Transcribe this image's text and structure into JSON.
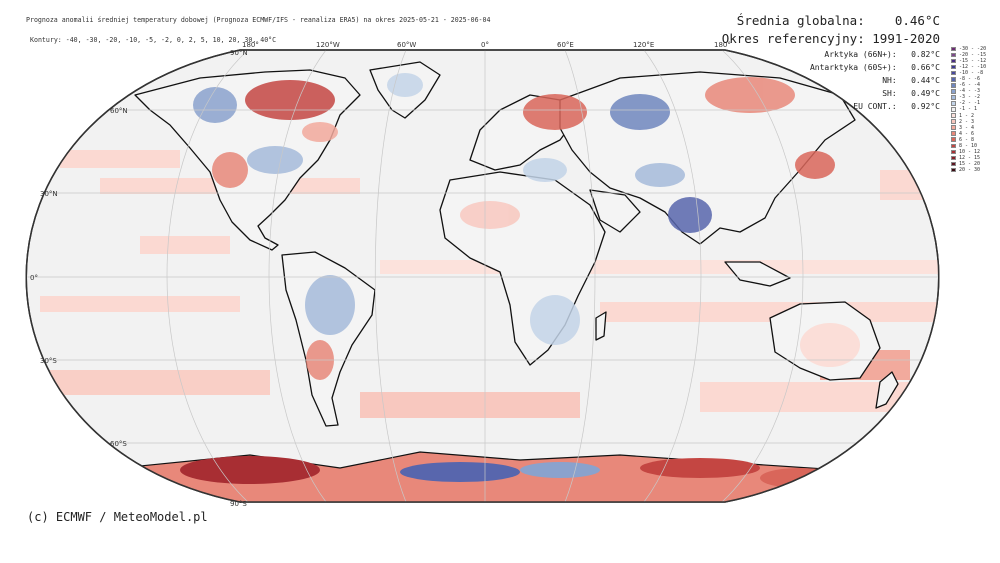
{
  "header": {
    "title": "Prognoza anomalii średniej temperatury dobowej (Prognoza ECMWF/IFS - reanaliza ERA5) na okres 2025-05-21 - 2025-06-04",
    "contours": "Kontury: -40, -30, -20, -10, -5, -2, 0, 2, 5, 10, 20, 30, 40°C"
  },
  "stats": {
    "global_label": "Średnia globalna:",
    "global_value": "0.46°C",
    "reference_label": "Okres referencyjny:",
    "reference_value": "1991-2020",
    "rows": [
      {
        "label": "Arktyka (66N+):",
        "value": "0.82°C"
      },
      {
        "label": "Antarktyka (60S+):",
        "value": "0.66°C"
      },
      {
        "label": "NH:",
        "value": "0.44°C"
      },
      {
        "label": "SH:",
        "value": "0.49°C"
      },
      {
        "label": "EU CONT.:",
        "value": "0.92°C"
      }
    ]
  },
  "legend": [
    {
      "label": "-30 - -20",
      "color": "#6d2a74"
    },
    {
      "label": "-20 - -15",
      "color": "#7e4a8c"
    },
    {
      "label": "-15 - -12",
      "color": "#4b2e83"
    },
    {
      "label": "-12 - -10",
      "color": "#3e3a94"
    },
    {
      "label": "-10 - -8",
      "color": "#48489e"
    },
    {
      "label": "-8 - -6",
      "color": "#5866ad"
    },
    {
      "label": "-6 - -4",
      "color": "#6f86be"
    },
    {
      "label": "-4 - -3",
      "color": "#8aa2cd"
    },
    {
      "label": "-3 - -2",
      "color": "#a6bbdb"
    },
    {
      "label": "-2 - -1",
      "color": "#c3d4e8"
    },
    {
      "label": "-1 - 1",
      "color": "#f1f1f1"
    },
    {
      "label": "1 - 2",
      "color": "#fbe1dc"
    },
    {
      "label": "2 - 3",
      "color": "#f8c8bf"
    },
    {
      "label": "3 - 4",
      "color": "#f2aa9d"
    },
    {
      "label": "4 - 6",
      "color": "#e8887a"
    },
    {
      "label": "6 - 8",
      "color": "#d9665a"
    },
    {
      "label": "8 - 10",
      "color": "#c44642"
    },
    {
      "label": "10 - 12",
      "color": "#a82e33"
    },
    {
      "label": "12 - 15",
      "color": "#871f29"
    },
    {
      "label": "15 - 20",
      "color": "#5e1420"
    },
    {
      "label": "20 - 30",
      "color": "#3a0a12"
    }
  ],
  "grid": {
    "lon_labels": [
      "180°",
      "120°W",
      "60°W",
      "0°",
      "60°E",
      "120°E",
      "180°"
    ],
    "lat_labels": [
      "90°N",
      "60°N",
      "30°N",
      "0°",
      "30°S",
      "60°S",
      "90°S"
    ]
  },
  "footer": {
    "copyright": "(c) ECMWF / MeteoModel.pl"
  }
}
